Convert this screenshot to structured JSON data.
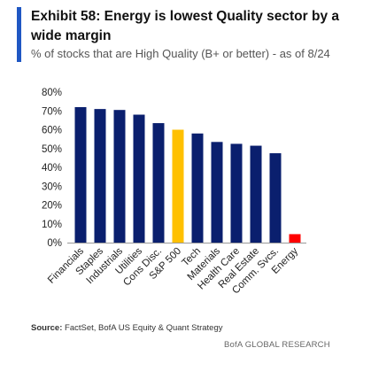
{
  "header": {
    "title": "Exhibit 58: Energy is lowest Quality sector by a wide margin",
    "subtitle": "% of stocks that are High Quality (B+ or better) - as of 8/24"
  },
  "footer": {
    "source_label": "Source:",
    "source_text": " FactSet, BofA US Equity & Quant Strategy",
    "brand": "BofA GLOBAL RESEARCH"
  },
  "colors": {
    "accent": "#1f57c3",
    "bar_default": "#0a1f6e",
    "bar_benchmark": "#ffc000",
    "bar_highlight": "#ff0000"
  },
  "chart_data": {
    "type": "bar",
    "categories": [
      "Financials",
      "Staples",
      "Industrials",
      "Utilities",
      "Cons Disc.",
      "S&P 500",
      "Tech",
      "Materials",
      "Health Care",
      "Real Estate",
      "Comm. Svcs.",
      "Energy"
    ],
    "values": [
      72,
      71,
      70.5,
      68,
      63.5,
      60,
      58,
      53.5,
      52.5,
      51.5,
      47.5,
      4.5
    ],
    "highlights": {
      "S&P 500": "benchmark",
      "Energy": "highlight"
    },
    "yticks": [
      "0%",
      "10%",
      "20%",
      "30%",
      "40%",
      "50%",
      "60%",
      "70%",
      "80%"
    ],
    "ylim": [
      0,
      80
    ],
    "grid": false,
    "legend": false
  }
}
